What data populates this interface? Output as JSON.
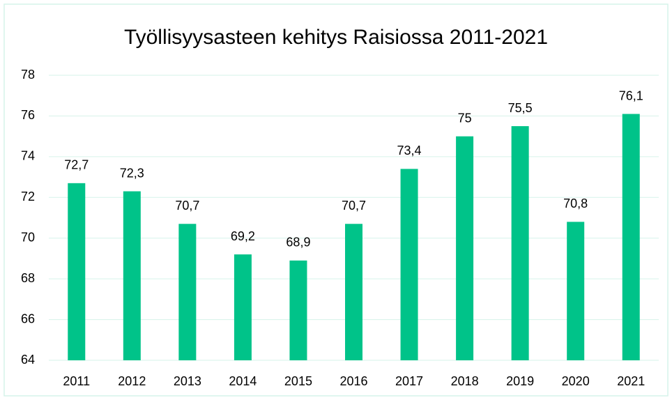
{
  "chart_data": {
    "type": "bar",
    "title": "Työllisyysasteen kehitys Raisiossa 2011-2021",
    "categories": [
      "2011",
      "2012",
      "2013",
      "2014",
      "2015",
      "2016",
      "2017",
      "2018",
      "2019",
      "2020",
      "2021"
    ],
    "values": [
      72.7,
      72.3,
      70.7,
      69.2,
      68.9,
      70.7,
      73.4,
      75,
      75.5,
      70.8,
      76.1
    ],
    "value_labels": [
      "72,7",
      "72,3",
      "70,7",
      "69,2",
      "68,9",
      "70,7",
      "73,4",
      "75",
      "75,5",
      "70,8",
      "76,1"
    ],
    "color": "#00c389",
    "ylim": [
      64,
      78
    ],
    "yticks": [
      64,
      66,
      68,
      70,
      72,
      74,
      76,
      78
    ],
    "grid": true
  }
}
